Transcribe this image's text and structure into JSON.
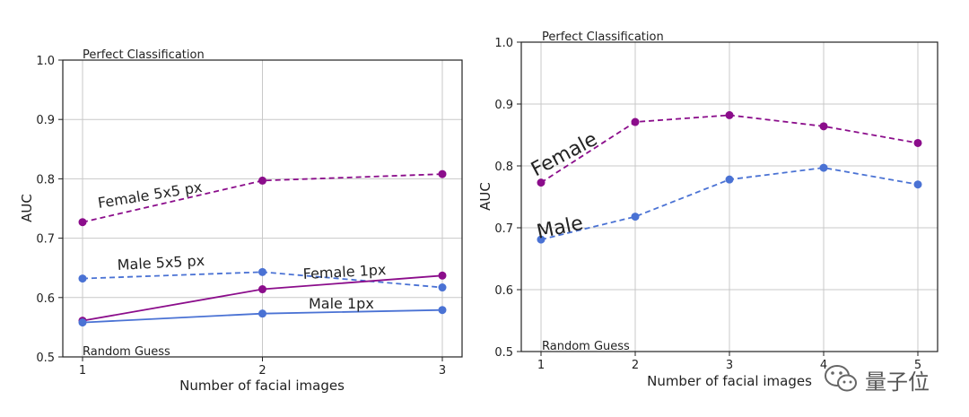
{
  "chart_data": [
    {
      "type": "line",
      "xlabel": "Number of facial images",
      "ylabel": "AUC",
      "x": [
        1,
        2,
        3
      ],
      "xticks": [
        "1",
        "2",
        "3"
      ],
      "ylim": [
        0.5,
        1.0
      ],
      "yticks": [
        "0.5",
        "0.6",
        "0.7",
        "0.8",
        "0.9",
        "1.0"
      ],
      "grid": true,
      "annotations": {
        "top": "Perfect Classification",
        "bottom": "Random Guess"
      },
      "series": [
        {
          "name": "Female 5x5 px",
          "values": [
            0.727,
            0.797,
            0.808
          ],
          "color": "#8b0d8b",
          "style": "dashed"
        },
        {
          "name": "Male 5x5 px",
          "values": [
            0.632,
            0.643,
            0.617
          ],
          "color": "#4a72d4",
          "style": "dashed"
        },
        {
          "name": "Female 1px",
          "values": [
            0.561,
            0.614,
            0.637
          ],
          "color": "#8b0d8b",
          "style": "solid"
        },
        {
          "name": "Male 1px",
          "values": [
            0.558,
            0.573,
            0.579
          ],
          "color": "#4a72d4",
          "style": "solid"
        }
      ]
    },
    {
      "type": "line",
      "xlabel": "Number of facial images",
      "ylabel": "AUC",
      "x": [
        1,
        2,
        3,
        4,
        5
      ],
      "xticks": [
        "1",
        "2",
        "3",
        "4",
        "5"
      ],
      "ylim": [
        0.5,
        1.0
      ],
      "yticks": [
        "0.5",
        "0.6",
        "0.7",
        "0.8",
        "0.9",
        "1.0"
      ],
      "grid": true,
      "annotations": {
        "top": "Perfect Classification",
        "bottom": "Random Guess"
      },
      "series": [
        {
          "name": "Female",
          "values": [
            0.773,
            0.871,
            0.882,
            0.864,
            0.837
          ],
          "color": "#8b0d8b",
          "style": "dashed"
        },
        {
          "name": "Male",
          "values": [
            0.681,
            0.718,
            0.778,
            0.797,
            0.77
          ],
          "color": "#4a72d4",
          "style": "dashed"
        }
      ]
    }
  ],
  "watermark": {
    "text": "量子位",
    "icon": "wechat-icon"
  }
}
